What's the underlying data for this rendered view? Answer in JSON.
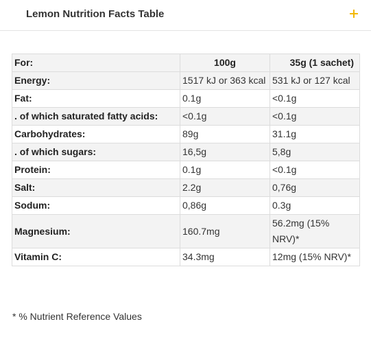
{
  "accordion": {
    "title": "Lemon Nutrition Facts Table",
    "toggle_icon": "plus-icon",
    "accent_color": "#f2b705"
  },
  "table": {
    "headers": [
      "For:",
      "100g",
      "35g (1 sachet)"
    ],
    "rows": [
      {
        "label": "Energy:",
        "per100": "1517 kJ or 363 kcal",
        "perSachet": "531 kJ or 127 kcal"
      },
      {
        "label": "Fat:",
        "per100": "0.1g",
        "perSachet": "<0.1g"
      },
      {
        "label": ". of which saturated fatty acids:",
        "per100": "<0.1g",
        "perSachet": "<0.1g"
      },
      {
        "label": "Carbohydrates:",
        "per100": "89g",
        "perSachet": "31.1g"
      },
      {
        "label": ". of which sugars:",
        "per100": "16,5g",
        "perSachet": "5,8g"
      },
      {
        "label": "Protein:",
        "per100": "0.1g",
        "perSachet": "<0.1g"
      },
      {
        "label": "Salt:",
        "per100": "2.2g",
        "perSachet": "0,76g"
      },
      {
        "label": "Sodum:",
        "per100": "0,86g",
        "perSachet": "0.3g"
      },
      {
        "label": "Magnesium:",
        "per100": "160.7mg",
        "perSachet": "56.2mg (15% NRV)*"
      },
      {
        "label": "Vitamin C:",
        "per100": "34.3mg",
        "perSachet": "12mg (15% NRV)*"
      }
    ]
  },
  "footnote": "* % Nutrient Reference Values"
}
